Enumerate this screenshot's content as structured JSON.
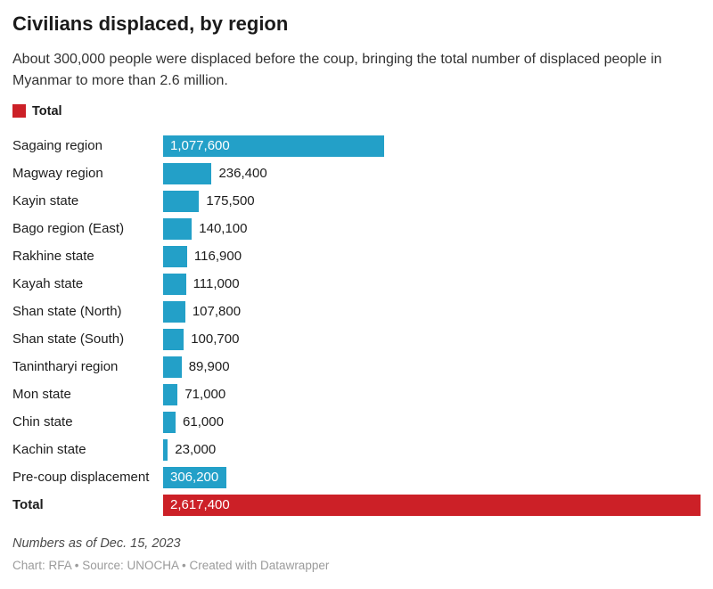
{
  "header": {
    "title": "Civilians displaced, by region",
    "subtitle": "About 300,000 people were displaced before the coup, bringing the total number of displaced people in Myanmar to more than 2.6 million."
  },
  "legend": {
    "label": "Total",
    "color": "#cc2027"
  },
  "chart_data": {
    "type": "bar",
    "orientation": "horizontal",
    "title": "Civilians displaced, by region",
    "categories": [
      "Sagaing region",
      "Magway region",
      "Kayin state",
      "Bago region (East)",
      "Rakhine state",
      "Kayah state",
      "Shan state (North)",
      "Shan state (South)",
      "Tanintharyi region",
      "Mon state",
      "Chin state",
      "Kachin state",
      "Pre-coup displacement",
      "Total"
    ],
    "values": [
      1077600,
      236400,
      175500,
      140100,
      116900,
      111000,
      107800,
      100700,
      89900,
      71000,
      61000,
      23000,
      306200,
      2617400
    ],
    "display_values": [
      "1,077,600",
      "236,400",
      "175,500",
      "140,100",
      "116,900",
      "111,000",
      "107,800",
      "100,700",
      "89,900",
      "71,000",
      "61,000",
      "23,000",
      "306,200",
      "2,617,400"
    ],
    "value_label_inside": [
      true,
      false,
      false,
      false,
      false,
      false,
      false,
      false,
      false,
      false,
      false,
      false,
      true,
      true
    ],
    "total_index": 13,
    "bar_color": "#23a0c8",
    "total_color": "#cc2027",
    "xlim": [
      0,
      2617400
    ],
    "grid": false,
    "legend_position": "top-left"
  },
  "footer": {
    "note": "Numbers as of Dec. 15, 2023",
    "credits": "Chart: RFA • Source: UNOCHA • Created with Datawrapper"
  }
}
